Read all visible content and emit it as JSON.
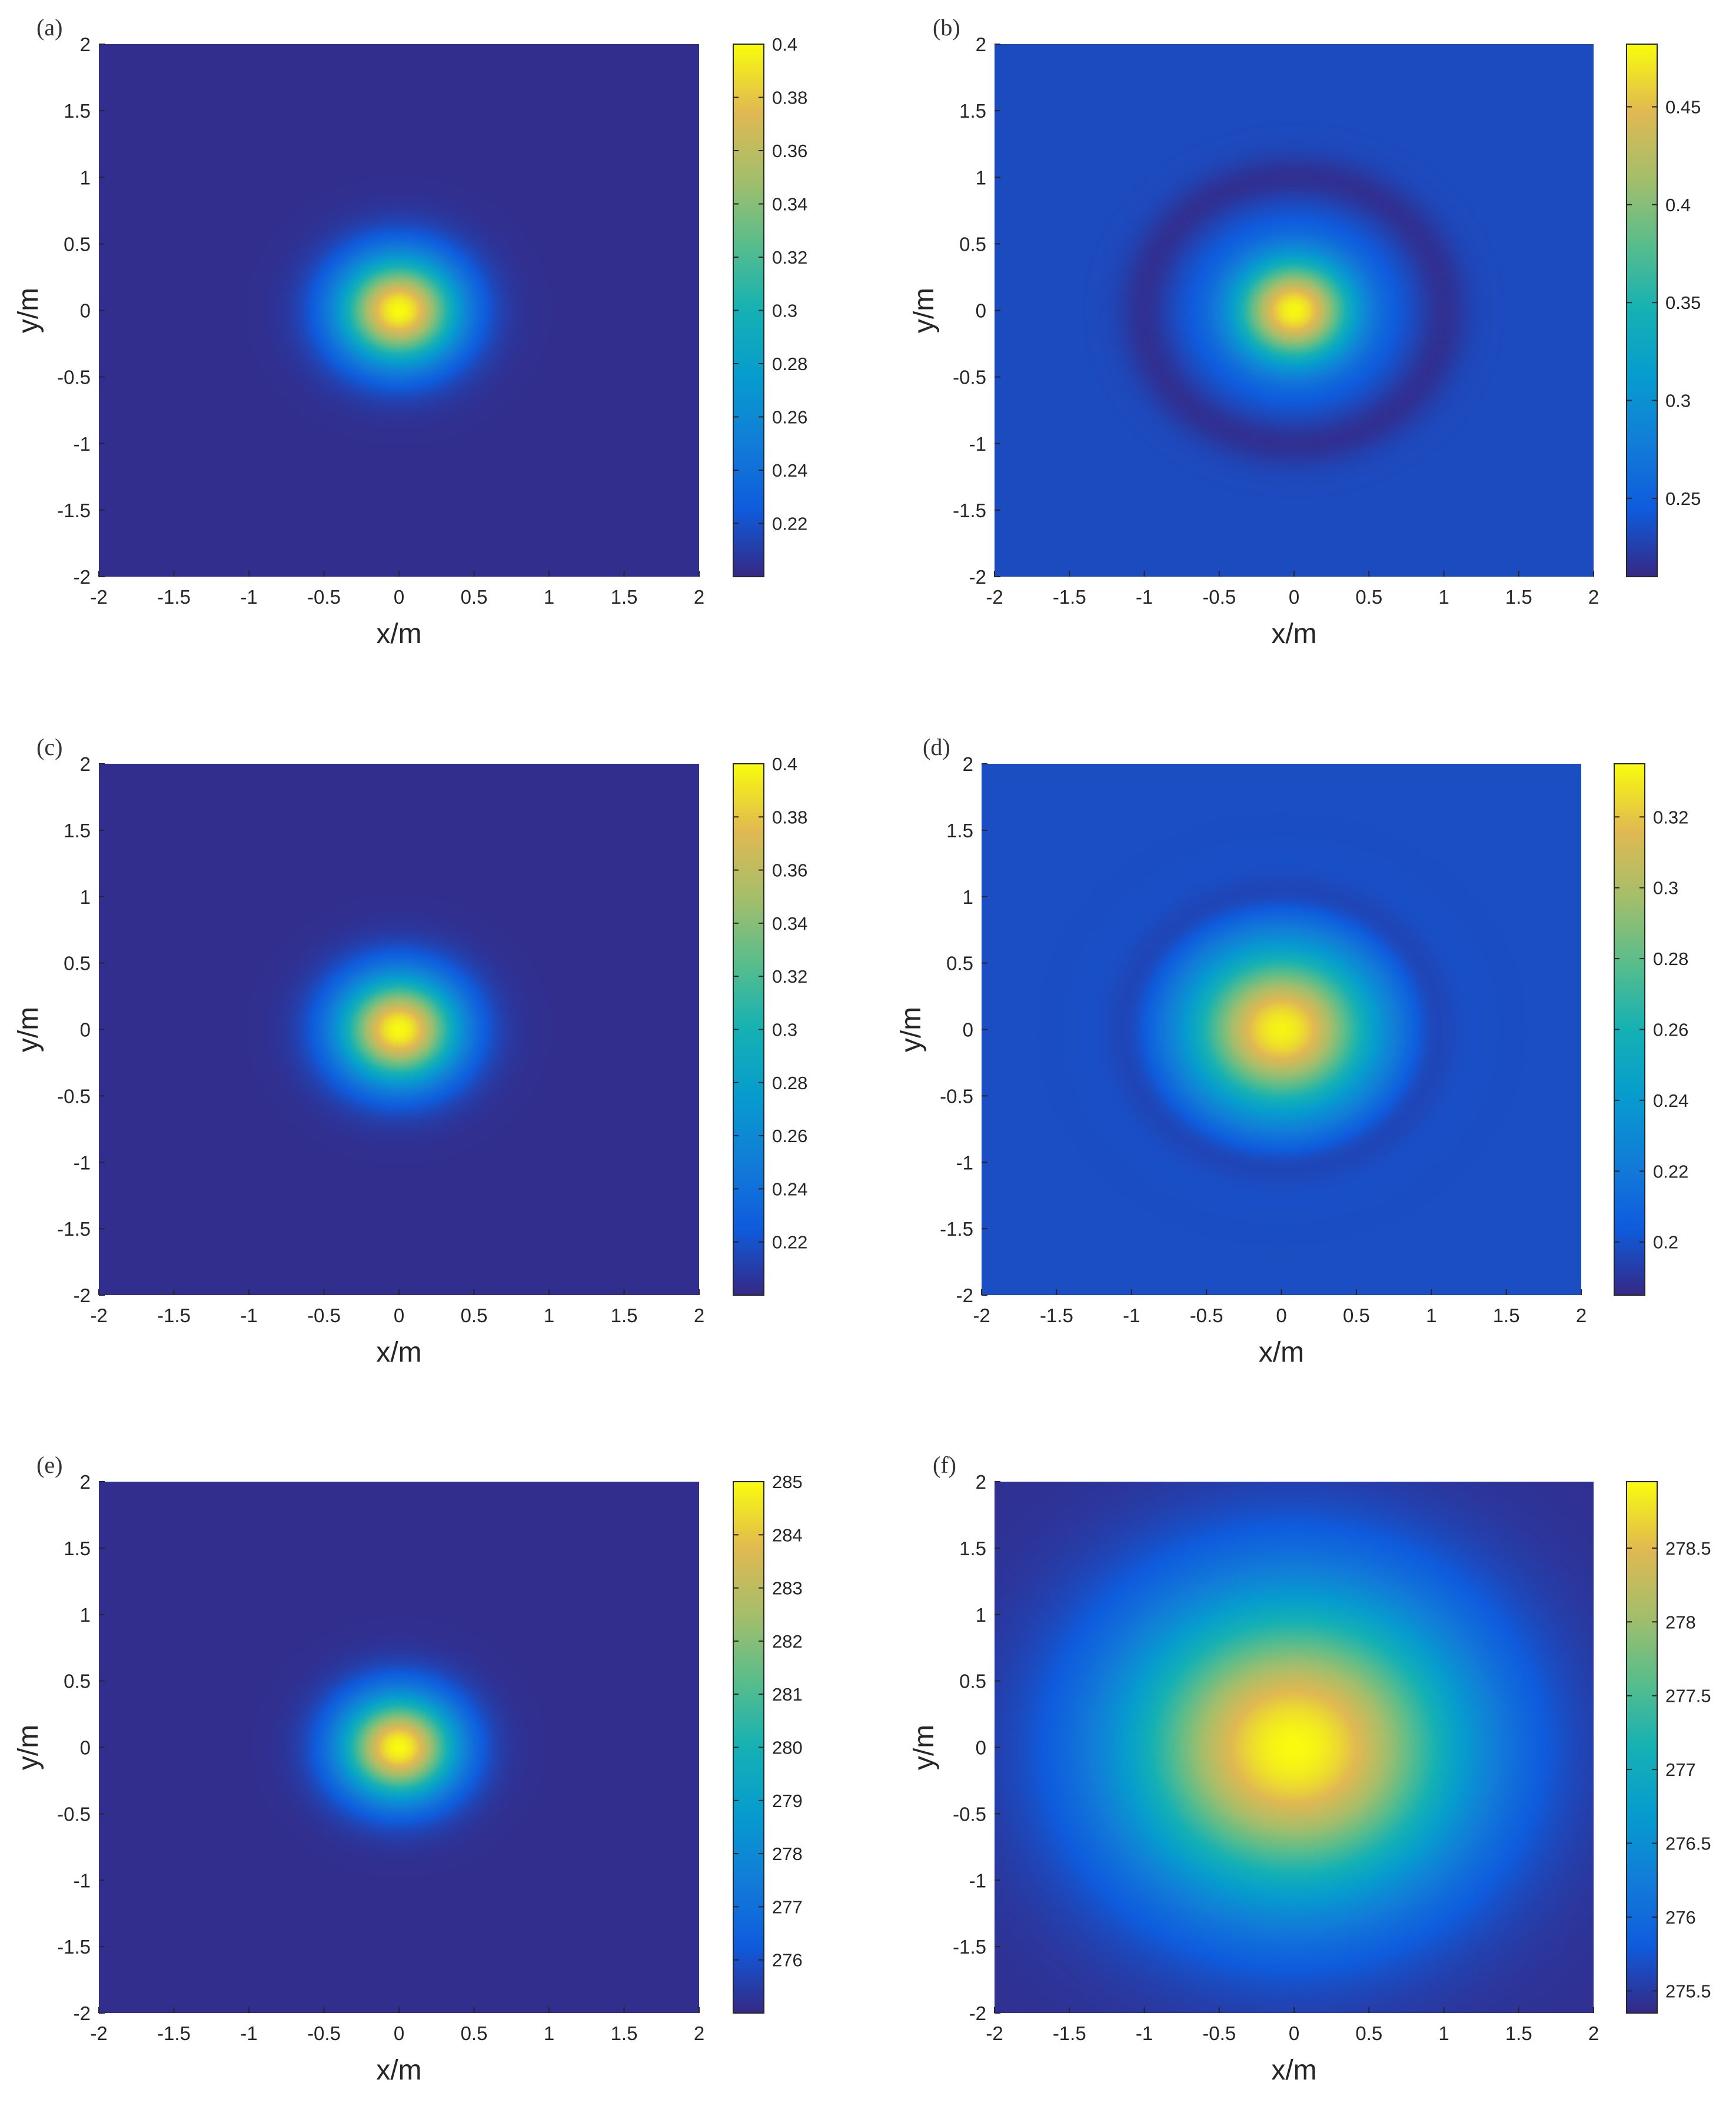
{
  "figure": {
    "panels": [
      {
        "id": "a",
        "label": "(a)"
      },
      {
        "id": "b",
        "label": "(b)"
      },
      {
        "id": "c",
        "label": "(c)"
      },
      {
        "id": "d",
        "label": "(d)"
      },
      {
        "id": "e",
        "label": "(e)"
      },
      {
        "id": "f",
        "label": "(f)"
      }
    ]
  },
  "chart_data": [
    {
      "panel": "(a)",
      "type": "heatmap",
      "xlabel": "x/m",
      "ylabel": "y/m",
      "xlim": [
        -2,
        2
      ],
      "ylim": [
        -2,
        2
      ],
      "x_ticks": [
        "-2",
        "-1.5",
        "-1",
        "-0.5",
        "0",
        "0.5",
        "1",
        "1.5",
        "2"
      ],
      "y_ticks": [
        "-2",
        "-1.5",
        "-1",
        "-0.5",
        "0",
        "0.5",
        "1",
        "1.5",
        "2"
      ],
      "colormap": "parula",
      "clim": [
        0.2,
        0.4
      ],
      "colorbar_ticks": [
        "0.22",
        "0.24",
        "0.26",
        "0.28",
        "0.3",
        "0.32",
        "0.34",
        "0.36",
        "0.38",
        "0.4"
      ],
      "field": {
        "shape": "gaussian",
        "center": [
          0,
          0
        ],
        "peak": 0.4,
        "background": 0.202,
        "sigma": 0.28,
        "ring": 0
      }
    },
    {
      "panel": "(b)",
      "type": "heatmap",
      "xlabel": "x/m",
      "ylabel": "y/m",
      "xlim": [
        -2,
        2
      ],
      "ylim": [
        -2,
        2
      ],
      "x_ticks": [
        "-2",
        "-1.5",
        "-1",
        "-0.5",
        "0",
        "0.5",
        "1",
        "1.5",
        "2"
      ],
      "y_ticks": [
        "-2",
        "-1.5",
        "-1",
        "-0.5",
        "0",
        "0.5",
        "1",
        "1.5",
        "2"
      ],
      "colormap": "parula",
      "clim": [
        0.21,
        0.482
      ],
      "colorbar_ticks": [
        "0.25",
        "0.3",
        "0.35",
        "0.4",
        "0.45"
      ],
      "field": {
        "shape": "gaussian",
        "center": [
          0,
          0
        ],
        "peak": 0.48,
        "background": 0.232,
        "sigma": 0.28,
        "ring": -0.018
      }
    },
    {
      "panel": "(c)",
      "type": "heatmap",
      "xlabel": "x/m",
      "ylabel": "y/m",
      "xlim": [
        -2,
        2
      ],
      "ylim": [
        -2,
        2
      ],
      "x_ticks": [
        "-2",
        "-1.5",
        "-1",
        "-0.5",
        "0",
        "0.5",
        "1",
        "1.5",
        "2"
      ],
      "y_ticks": [
        "-2",
        "-1.5",
        "-1",
        "-0.5",
        "0",
        "0.5",
        "1",
        "1.5",
        "2"
      ],
      "colormap": "parula",
      "clim": [
        0.2,
        0.4
      ],
      "colorbar_ticks": [
        "0.22",
        "0.24",
        "0.26",
        "0.28",
        "0.3",
        "0.32",
        "0.34",
        "0.36",
        "0.38",
        "0.4"
      ],
      "field": {
        "shape": "gaussian",
        "center": [
          0,
          0
        ],
        "peak": 0.4,
        "background": 0.202,
        "sigma": 0.28,
        "ring": 0
      }
    },
    {
      "panel": "(d)",
      "type": "heatmap",
      "xlabel": "x/m",
      "ylabel": "y/m",
      "xlim": [
        -2,
        2
      ],
      "ylim": [
        -2,
        2
      ],
      "x_ticks": [
        "-2",
        "-1.5",
        "-1",
        "-0.5",
        "0",
        "0.5",
        "1",
        "1.5",
        "2"
      ],
      "y_ticks": [
        "-2",
        "-1.5",
        "-1",
        "-0.5",
        "0",
        "0.5",
        "1",
        "1.5",
        "2"
      ],
      "colormap": "parula",
      "clim": [
        0.185,
        0.335
      ],
      "colorbar_ticks": [
        "0.2",
        "0.22",
        "0.24",
        "0.26",
        "0.28",
        "0.3",
        "0.32"
      ],
      "field": {
        "shape": "gaussian",
        "center": [
          0,
          0
        ],
        "peak": 0.333,
        "background": 0.198,
        "sigma": 0.42,
        "ring": -0.009
      }
    },
    {
      "panel": "(e)",
      "type": "heatmap",
      "xlabel": "x/m",
      "ylabel": "y/m",
      "xlim": [
        -2,
        2
      ],
      "ylim": [
        -2,
        2
      ],
      "x_ticks": [
        "-2",
        "-1.5",
        "-1",
        "-0.5",
        "0",
        "0.5",
        "1",
        "1.5",
        "2"
      ],
      "y_ticks": [
        "-2",
        "-1.5",
        "-1",
        "-0.5",
        "0",
        "0.5",
        "1",
        "1.5",
        "2"
      ],
      "colormap": "parula",
      "clim": [
        275,
        285
      ],
      "colorbar_ticks": [
        "276",
        "277",
        "278",
        "279",
        "280",
        "281",
        "282",
        "283",
        "284",
        "285"
      ],
      "field": {
        "shape": "gaussian",
        "center": [
          0,
          0
        ],
        "peak": 285,
        "background": 275.1,
        "sigma": 0.27,
        "ring": 0
      }
    },
    {
      "panel": "(f)",
      "type": "heatmap",
      "xlabel": "x/m",
      "ylabel": "y/m",
      "xlim": [
        -2,
        2
      ],
      "ylim": [
        -2,
        2
      ],
      "x_ticks": [
        "-2",
        "-1.5",
        "-1",
        "-0.5",
        "0",
        "0.5",
        "1",
        "1.5",
        "2"
      ],
      "y_ticks": [
        "-2",
        "-1.5",
        "-1",
        "-0.5",
        "0",
        "0.5",
        "1",
        "1.5",
        "2"
      ],
      "colormap": "parula",
      "clim": [
        275.35,
        278.95
      ],
      "colorbar_ticks": [
        "275.5",
        "276",
        "276.5",
        "277",
        "277.5",
        "278",
        "278.5"
      ],
      "field": {
        "shape": "gaussian",
        "center": [
          0,
          0
        ],
        "peak": 278.95,
        "background": 275.4,
        "sigma": 0.8,
        "ring": 0
      }
    }
  ]
}
